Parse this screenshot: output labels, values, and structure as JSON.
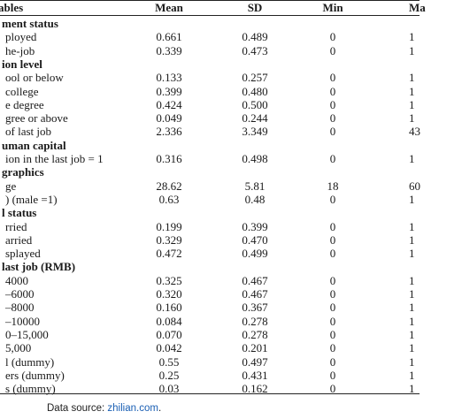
{
  "header": {
    "variables": "ables",
    "mean": "Mean",
    "sd": "SD",
    "min": "Min",
    "max": "Ma"
  },
  "rows": [
    {
      "type": "section",
      "label": "ment status"
    },
    {
      "type": "data",
      "label": "ployed",
      "mean": "0.661",
      "sd": "0.489",
      "min": "0",
      "max": "1"
    },
    {
      "type": "data",
      "label": "he-job",
      "mean": "0.339",
      "sd": "0.473",
      "min": "0",
      "max": "1"
    },
    {
      "type": "section",
      "label": "ion level"
    },
    {
      "type": "data",
      "label": "ool or below",
      "mean": "0.133",
      "sd": "0.257",
      "min": "0",
      "max": "1"
    },
    {
      "type": "data",
      "label": "college",
      "mean": "0.399",
      "sd": "0.480",
      "min": "0",
      "max": "1"
    },
    {
      "type": "data",
      "label": "e degree",
      "mean": "0.424",
      "sd": "0.500",
      "min": "0",
      "max": "1"
    },
    {
      "type": "data",
      "label": "gree or above",
      "mean": "0.049",
      "sd": "0.244",
      "min": "0",
      "max": "1"
    },
    {
      "type": "data",
      "label": "of last job",
      "mean": "2.336",
      "sd": "3.349",
      "min": "0",
      "max": "43"
    },
    {
      "type": "section",
      "label": "uman capital"
    },
    {
      "type": "data",
      "label": "ion in the last job = 1",
      "mean": "0.316",
      "sd": "0.498",
      "min": "0",
      "max": "1"
    },
    {
      "type": "section",
      "label": "graphics"
    },
    {
      "type": "data",
      "label": "ge",
      "mean": "28.62",
      "sd": "5.81",
      "min": "18",
      "max": "60"
    },
    {
      "type": "data",
      "label": ") (male =1)",
      "mean": "0.63",
      "sd": "0.48",
      "min": "0",
      "max": "1"
    },
    {
      "type": "section",
      "label": "l status"
    },
    {
      "type": "data",
      "label": "rried",
      "mean": "0.199",
      "sd": "0.399",
      "min": "0",
      "max": "1"
    },
    {
      "type": "data",
      "label": "arried",
      "mean": "0.329",
      "sd": "0.470",
      "min": "0",
      "max": "1"
    },
    {
      "type": "data",
      "label": "splayed",
      "mean": "0.472",
      "sd": "0.499",
      "min": "0",
      "max": "1"
    },
    {
      "type": "section",
      "label": "last job (RMB)"
    },
    {
      "type": "data",
      "label": "4000",
      "mean": "0.325",
      "sd": "0.467",
      "min": "0",
      "max": "1"
    },
    {
      "type": "data",
      "label": "–6000",
      "mean": "0.320",
      "sd": "0.467",
      "min": "0",
      "max": "1"
    },
    {
      "type": "data",
      "label": "–8000",
      "mean": "0.160",
      "sd": "0.367",
      "min": "0",
      "max": "1"
    },
    {
      "type": "data",
      "label": "–10000",
      "mean": "0.084",
      "sd": "0.278",
      "min": "0",
      "max": "1"
    },
    {
      "type": "data",
      "label": "0–15,000",
      "mean": "0.070",
      "sd": "0.278",
      "min": "0",
      "max": "1"
    },
    {
      "type": "data",
      "label": "5,000",
      "mean": "0.042",
      "sd": "0.201",
      "min": "0",
      "max": "1"
    },
    {
      "type": "data",
      "label": "l (dummy)",
      "mean": "0.55",
      "sd": "0.497",
      "min": "0",
      "max": "1"
    },
    {
      "type": "data",
      "label": "ers (dummy)",
      "mean": "0.25",
      "sd": "0.431",
      "min": "0",
      "max": "1"
    },
    {
      "type": "data",
      "label": "s (dummy)",
      "mean": "0.03",
      "sd": "0.162",
      "min": "0",
      "max": "1"
    }
  ],
  "footer": {
    "prefix": "Data source: ",
    "link": "zhilian.com",
    "suffix": "."
  }
}
